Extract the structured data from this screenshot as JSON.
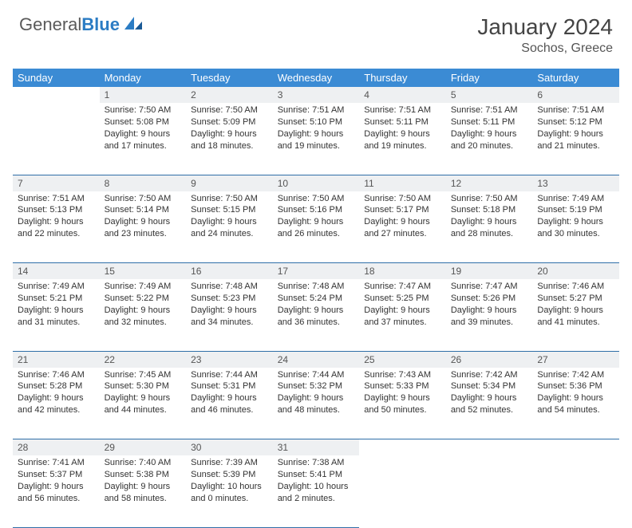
{
  "logo": {
    "general": "General",
    "blue": "Blue"
  },
  "title": "January 2024",
  "location": "Sochos, Greece",
  "colors": {
    "header_bg": "#3b8bd4",
    "header_text": "#ffffff",
    "daynum_bg": "#eef0f2",
    "border": "#2f6fa8",
    "logo_gray": "#5a5a5a",
    "logo_blue": "#2b7cc4"
  },
  "weekdays": [
    "Sunday",
    "Monday",
    "Tuesday",
    "Wednesday",
    "Thursday",
    "Friday",
    "Saturday"
  ],
  "weeks": [
    {
      "nums": [
        "",
        "1",
        "2",
        "3",
        "4",
        "5",
        "6"
      ],
      "cells": [
        null,
        {
          "sunrise": "Sunrise: 7:50 AM",
          "sunset": "Sunset: 5:08 PM",
          "d1": "Daylight: 9 hours",
          "d2": "and 17 minutes."
        },
        {
          "sunrise": "Sunrise: 7:50 AM",
          "sunset": "Sunset: 5:09 PM",
          "d1": "Daylight: 9 hours",
          "d2": "and 18 minutes."
        },
        {
          "sunrise": "Sunrise: 7:51 AM",
          "sunset": "Sunset: 5:10 PM",
          "d1": "Daylight: 9 hours",
          "d2": "and 19 minutes."
        },
        {
          "sunrise": "Sunrise: 7:51 AM",
          "sunset": "Sunset: 5:11 PM",
          "d1": "Daylight: 9 hours",
          "d2": "and 19 minutes."
        },
        {
          "sunrise": "Sunrise: 7:51 AM",
          "sunset": "Sunset: 5:11 PM",
          "d1": "Daylight: 9 hours",
          "d2": "and 20 minutes."
        },
        {
          "sunrise": "Sunrise: 7:51 AM",
          "sunset": "Sunset: 5:12 PM",
          "d1": "Daylight: 9 hours",
          "d2": "and 21 minutes."
        }
      ]
    },
    {
      "nums": [
        "7",
        "8",
        "9",
        "10",
        "11",
        "12",
        "13"
      ],
      "cells": [
        {
          "sunrise": "Sunrise: 7:51 AM",
          "sunset": "Sunset: 5:13 PM",
          "d1": "Daylight: 9 hours",
          "d2": "and 22 minutes."
        },
        {
          "sunrise": "Sunrise: 7:50 AM",
          "sunset": "Sunset: 5:14 PM",
          "d1": "Daylight: 9 hours",
          "d2": "and 23 minutes."
        },
        {
          "sunrise": "Sunrise: 7:50 AM",
          "sunset": "Sunset: 5:15 PM",
          "d1": "Daylight: 9 hours",
          "d2": "and 24 minutes."
        },
        {
          "sunrise": "Sunrise: 7:50 AM",
          "sunset": "Sunset: 5:16 PM",
          "d1": "Daylight: 9 hours",
          "d2": "and 26 minutes."
        },
        {
          "sunrise": "Sunrise: 7:50 AM",
          "sunset": "Sunset: 5:17 PM",
          "d1": "Daylight: 9 hours",
          "d2": "and 27 minutes."
        },
        {
          "sunrise": "Sunrise: 7:50 AM",
          "sunset": "Sunset: 5:18 PM",
          "d1": "Daylight: 9 hours",
          "d2": "and 28 minutes."
        },
        {
          "sunrise": "Sunrise: 7:49 AM",
          "sunset": "Sunset: 5:19 PM",
          "d1": "Daylight: 9 hours",
          "d2": "and 30 minutes."
        }
      ]
    },
    {
      "nums": [
        "14",
        "15",
        "16",
        "17",
        "18",
        "19",
        "20"
      ],
      "cells": [
        {
          "sunrise": "Sunrise: 7:49 AM",
          "sunset": "Sunset: 5:21 PM",
          "d1": "Daylight: 9 hours",
          "d2": "and 31 minutes."
        },
        {
          "sunrise": "Sunrise: 7:49 AM",
          "sunset": "Sunset: 5:22 PM",
          "d1": "Daylight: 9 hours",
          "d2": "and 32 minutes."
        },
        {
          "sunrise": "Sunrise: 7:48 AM",
          "sunset": "Sunset: 5:23 PM",
          "d1": "Daylight: 9 hours",
          "d2": "and 34 minutes."
        },
        {
          "sunrise": "Sunrise: 7:48 AM",
          "sunset": "Sunset: 5:24 PM",
          "d1": "Daylight: 9 hours",
          "d2": "and 36 minutes."
        },
        {
          "sunrise": "Sunrise: 7:47 AM",
          "sunset": "Sunset: 5:25 PM",
          "d1": "Daylight: 9 hours",
          "d2": "and 37 minutes."
        },
        {
          "sunrise": "Sunrise: 7:47 AM",
          "sunset": "Sunset: 5:26 PM",
          "d1": "Daylight: 9 hours",
          "d2": "and 39 minutes."
        },
        {
          "sunrise": "Sunrise: 7:46 AM",
          "sunset": "Sunset: 5:27 PM",
          "d1": "Daylight: 9 hours",
          "d2": "and 41 minutes."
        }
      ]
    },
    {
      "nums": [
        "21",
        "22",
        "23",
        "24",
        "25",
        "26",
        "27"
      ],
      "cells": [
        {
          "sunrise": "Sunrise: 7:46 AM",
          "sunset": "Sunset: 5:28 PM",
          "d1": "Daylight: 9 hours",
          "d2": "and 42 minutes."
        },
        {
          "sunrise": "Sunrise: 7:45 AM",
          "sunset": "Sunset: 5:30 PM",
          "d1": "Daylight: 9 hours",
          "d2": "and 44 minutes."
        },
        {
          "sunrise": "Sunrise: 7:44 AM",
          "sunset": "Sunset: 5:31 PM",
          "d1": "Daylight: 9 hours",
          "d2": "and 46 minutes."
        },
        {
          "sunrise": "Sunrise: 7:44 AM",
          "sunset": "Sunset: 5:32 PM",
          "d1": "Daylight: 9 hours",
          "d2": "and 48 minutes."
        },
        {
          "sunrise": "Sunrise: 7:43 AM",
          "sunset": "Sunset: 5:33 PM",
          "d1": "Daylight: 9 hours",
          "d2": "and 50 minutes."
        },
        {
          "sunrise": "Sunrise: 7:42 AM",
          "sunset": "Sunset: 5:34 PM",
          "d1": "Daylight: 9 hours",
          "d2": "and 52 minutes."
        },
        {
          "sunrise": "Sunrise: 7:42 AM",
          "sunset": "Sunset: 5:36 PM",
          "d1": "Daylight: 9 hours",
          "d2": "and 54 minutes."
        }
      ]
    },
    {
      "nums": [
        "28",
        "29",
        "30",
        "31",
        "",
        "",
        ""
      ],
      "cells": [
        {
          "sunrise": "Sunrise: 7:41 AM",
          "sunset": "Sunset: 5:37 PM",
          "d1": "Daylight: 9 hours",
          "d2": "and 56 minutes."
        },
        {
          "sunrise": "Sunrise: 7:40 AM",
          "sunset": "Sunset: 5:38 PM",
          "d1": "Daylight: 9 hours",
          "d2": "and 58 minutes."
        },
        {
          "sunrise": "Sunrise: 7:39 AM",
          "sunset": "Sunset: 5:39 PM",
          "d1": "Daylight: 10 hours",
          "d2": "and 0 minutes."
        },
        {
          "sunrise": "Sunrise: 7:38 AM",
          "sunset": "Sunset: 5:41 PM",
          "d1": "Daylight: 10 hours",
          "d2": "and 2 minutes."
        },
        null,
        null,
        null
      ]
    }
  ]
}
